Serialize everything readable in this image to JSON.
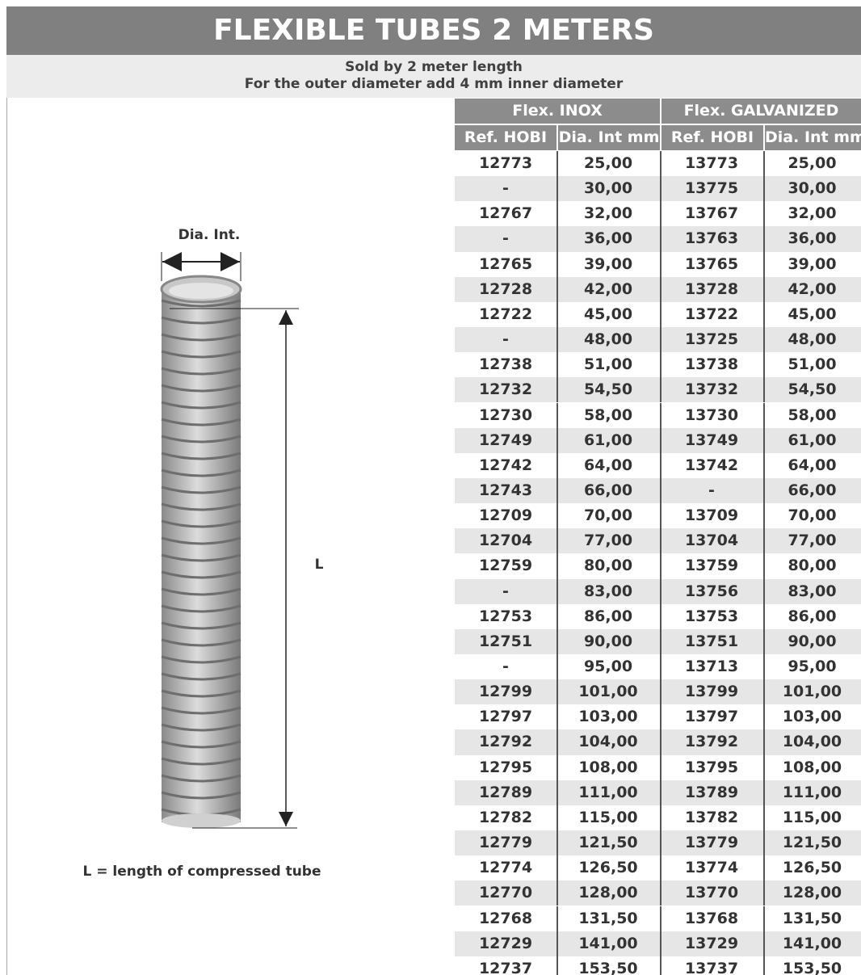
{
  "header": {
    "title": "FLEXIBLE TUBES 2 METERS",
    "subtitle_lines": [
      "Sold by 2 meter length",
      "For the outer diameter add 4 mm inner diameter"
    ]
  },
  "diagram": {
    "diameter_label": "Dia. Int.",
    "length_label": "L",
    "caption": "L = length of compressed tube"
  },
  "table": {
    "groups": [
      "Flex. INOX",
      "Flex. GALVANIZED"
    ],
    "columns": [
      "Ref. HOBI",
      "Dia. Int mm",
      "Ref. HOBI",
      "Dia. Int mm"
    ],
    "rows": [
      [
        "12773",
        "25,00",
        "13773",
        "25,00"
      ],
      [
        "-",
        "30,00",
        "13775",
        "30,00"
      ],
      [
        "12767",
        "32,00",
        "13767",
        "32,00"
      ],
      [
        "-",
        "36,00",
        "13763",
        "36,00"
      ],
      [
        "12765",
        "39,00",
        "13765",
        "39,00"
      ],
      [
        "12728",
        "42,00",
        "13728",
        "42,00"
      ],
      [
        "12722",
        "45,00",
        "13722",
        "45,00"
      ],
      [
        "-",
        "48,00",
        "13725",
        "48,00"
      ],
      [
        "12738",
        "51,00",
        "13738",
        "51,00"
      ],
      [
        "12732",
        "54,50",
        "13732",
        "54,50"
      ],
      [
        "12730",
        "58,00",
        "13730",
        "58,00"
      ],
      [
        "12749",
        "61,00",
        "13749",
        "61,00"
      ],
      [
        "12742",
        "64,00",
        "13742",
        "64,00"
      ],
      [
        "12743",
        "66,00",
        "-",
        "66,00"
      ],
      [
        "12709",
        "70,00",
        "13709",
        "70,00"
      ],
      [
        "12704",
        "77,00",
        "13704",
        "77,00"
      ],
      [
        "12759",
        "80,00",
        "13759",
        "80,00"
      ],
      [
        "-",
        "83,00",
        "13756",
        "83,00"
      ],
      [
        "12753",
        "86,00",
        "13753",
        "86,00"
      ],
      [
        "12751",
        "90,00",
        "13751",
        "90,00"
      ],
      [
        "-",
        "95,00",
        "13713",
        "95,00"
      ],
      [
        "12799",
        "101,00",
        "13799",
        "101,00"
      ],
      [
        "12797",
        "103,00",
        "13797",
        "103,00"
      ],
      [
        "12792",
        "104,00",
        "13792",
        "104,00"
      ],
      [
        "12795",
        "108,00",
        "13795",
        "108,00"
      ],
      [
        "12789",
        "111,00",
        "13789",
        "111,00"
      ],
      [
        "12782",
        "115,00",
        "13782",
        "115,00"
      ],
      [
        "12779",
        "121,50",
        "13779",
        "121,50"
      ],
      [
        "12774",
        "126,50",
        "13774",
        "126,50"
      ],
      [
        "12770",
        "128,00",
        "13770",
        "128,00"
      ],
      [
        "12768",
        "131,50",
        "13768",
        "131,50"
      ],
      [
        "12729",
        "141,00",
        "13729",
        "141,00"
      ],
      [
        "12737",
        "153,50",
        "13737",
        "153,50"
      ]
    ]
  }
}
